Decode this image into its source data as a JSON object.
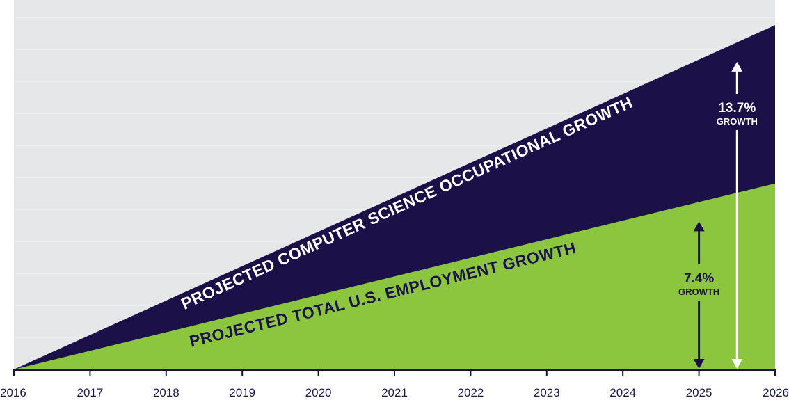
{
  "chart_data": {
    "type": "area",
    "title": "",
    "xlabel": "",
    "ylabel": "",
    "x": [
      2016,
      2026
    ],
    "xlim": [
      2016,
      2026
    ],
    "ylim": [
      0,
      14.7
    ],
    "series": [
      {
        "name": "PROJECTED COMPUTER SCIENCE OCCUPATIONAL GROWTH",
        "values": [
          0,
          13.7
        ],
        "color": "#1b1148",
        "label_color": "#ffffff"
      },
      {
        "name": "PROJECTED TOTAL U.S. EMPLOYMENT GROWTH",
        "values": [
          0,
          7.4
        ],
        "color": "#8cc63f",
        "label_color": "#1b1148"
      }
    ],
    "tick_labels": [
      "2016",
      "2017",
      "2018",
      "2019",
      "2020",
      "2021",
      "2022",
      "2023",
      "2024",
      "2025",
      "2026"
    ],
    "annotations": [
      {
        "value": "13.7%",
        "sub": "GROWTH",
        "x": 2025.5,
        "series": 0,
        "color": "#ffffff"
      },
      {
        "value": "7.4%",
        "sub": "GROWTH",
        "x": 2025.0,
        "series": 1,
        "color": "#1b1148"
      }
    ],
    "grid": true,
    "background_color": "#e6e7e8",
    "axis_color": "#1b1148"
  }
}
